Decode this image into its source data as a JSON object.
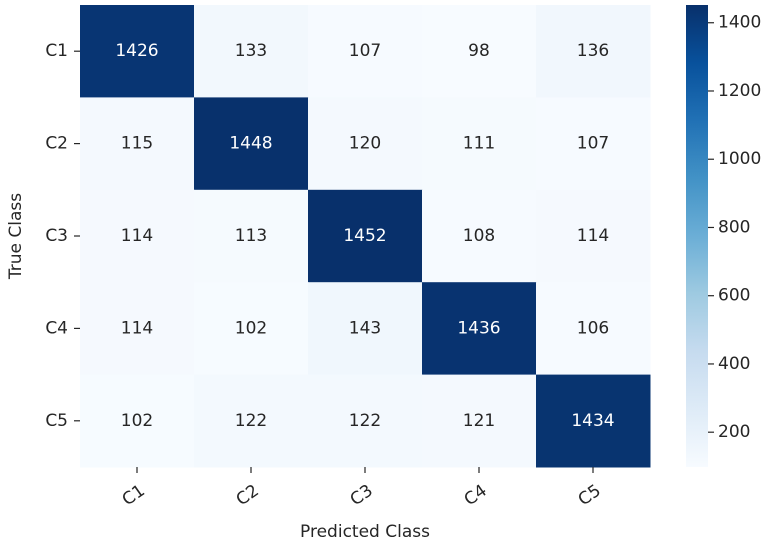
{
  "chart_data": {
    "type": "heatmap",
    "x_label": "Predicted Class",
    "y_label": "True Class",
    "x_categories": [
      "C1",
      "C2",
      "C3",
      "C4",
      "C5"
    ],
    "y_categories": [
      "C1",
      "C2",
      "C3",
      "C4",
      "C5"
    ],
    "z": [
      [
        1426,
        133,
        107,
        98,
        136
      ],
      [
        115,
        1448,
        120,
        111,
        107
      ],
      [
        114,
        113,
        1452,
        108,
        114
      ],
      [
        114,
        102,
        143,
        1436,
        106
      ],
      [
        102,
        122,
        122,
        121,
        1434
      ]
    ],
    "colormap": "Blues",
    "clim": [
      98,
      1452
    ],
    "cticks": [
      200,
      400,
      600,
      800,
      1000,
      1200,
      1400
    ]
  }
}
